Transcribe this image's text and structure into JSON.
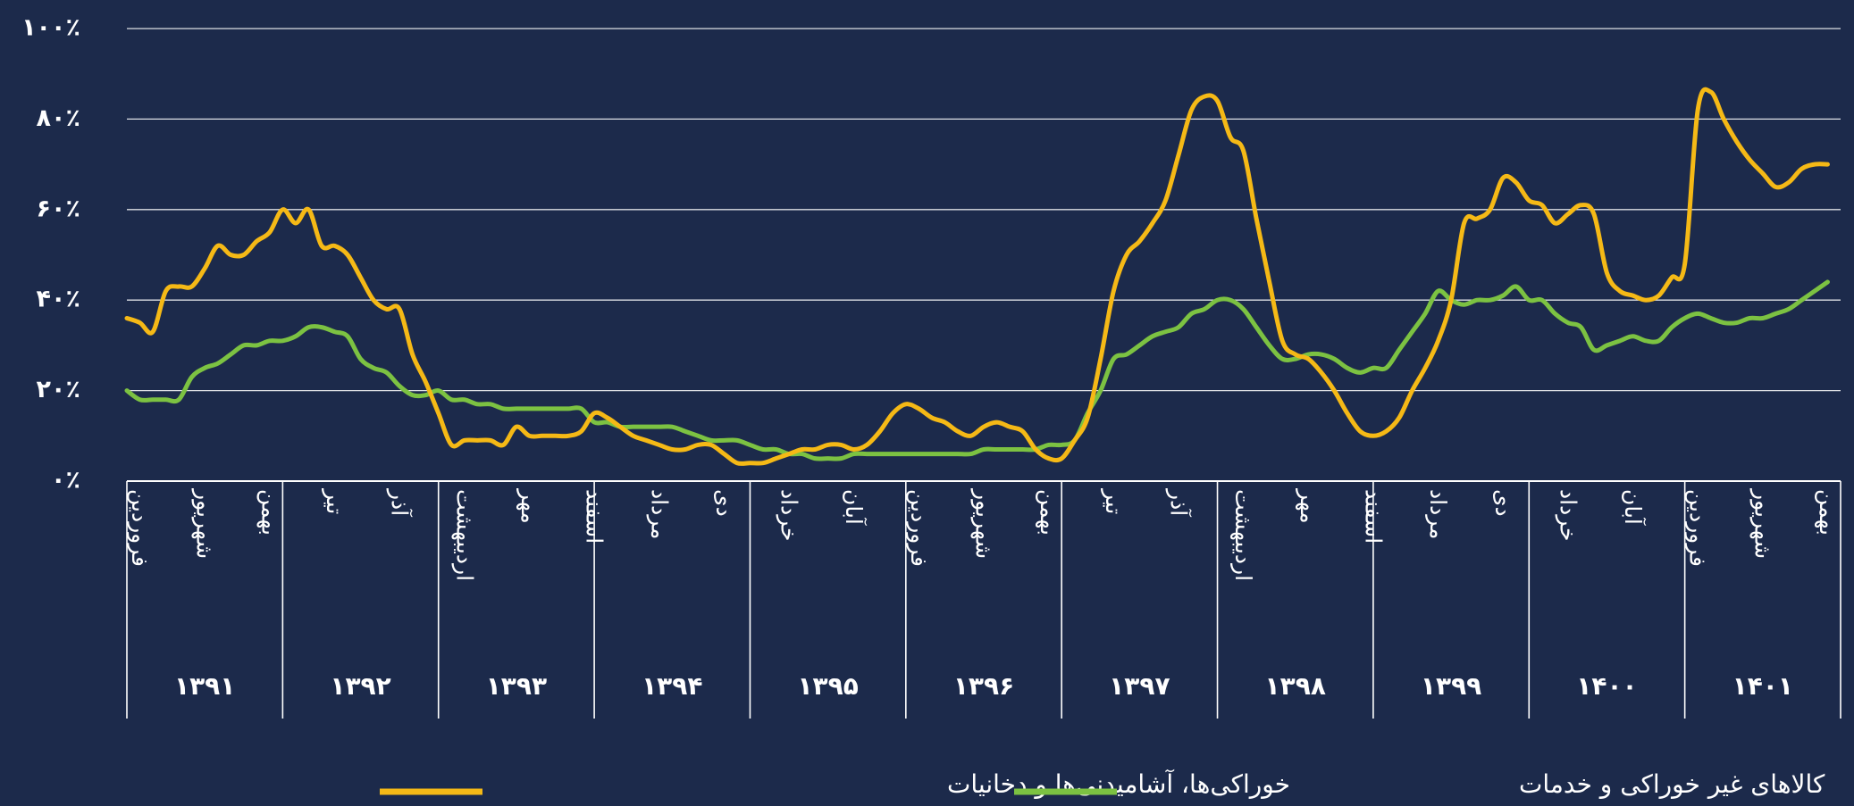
{
  "chart_data": {
    "type": "line",
    "categories": [
      "فروردین",
      null,
      null,
      null,
      null,
      "شهریور",
      null,
      null,
      null,
      null,
      "بهمن",
      null,
      null,
      null,
      null,
      "تیر",
      null,
      null,
      null,
      null,
      "آذر",
      null,
      null,
      null,
      null,
      "اردیبهشت",
      null,
      null,
      null,
      null,
      "مهر",
      null,
      null,
      null,
      null,
      "اسفند",
      null,
      null,
      null,
      null,
      "مرداد",
      null,
      null,
      null,
      null,
      "دی",
      null,
      null,
      null,
      null,
      "خرداد",
      null,
      null,
      null,
      null,
      "آبان",
      null,
      null,
      null,
      null,
      "فروردین",
      null,
      null,
      null,
      null,
      "شهریور",
      null,
      null,
      null,
      null,
      "بهمن",
      null,
      null,
      null,
      null,
      "تیر",
      null,
      null,
      null,
      null,
      "آذر",
      null,
      null,
      null,
      null,
      "اردیبهشت",
      null,
      null,
      null,
      null,
      "مهر",
      null,
      null,
      null,
      null,
      "اسفند",
      null,
      null,
      null,
      null,
      "مرداد",
      null,
      null,
      null,
      null,
      "دی",
      null,
      null,
      null,
      null,
      "خرداد",
      null,
      null,
      null,
      null,
      "آبان",
      null,
      null,
      null,
      null,
      "فروردین",
      null,
      null,
      null,
      null,
      "شهریور",
      null,
      null,
      null,
      null,
      "بهمن",
      null
    ],
    "years": [
      "۱۳۹۱",
      "۱۳۹۲",
      "۱۳۹۳",
      "۱۳۹۴",
      "۱۳۹۵",
      "۱۳۹۶",
      "۱۳۹۷",
      "۱۳۹۸",
      "۱۳۹۹",
      "۱۴۰۰",
      "۱۴۰۱"
    ],
    "series": [
      {
        "name": "خوراکی‌ها، آشامیدنی‌ها و دخانیات",
        "color": "#f5b916",
        "values": [
          36,
          35,
          33,
          42,
          43,
          43,
          47,
          52,
          50,
          50,
          53,
          55,
          60,
          57,
          60,
          52,
          52,
          50,
          45,
          40,
          38,
          38,
          28,
          22,
          15,
          8,
          9,
          9,
          9,
          8,
          12,
          10,
          10,
          10,
          10,
          11,
          15,
          14,
          12,
          10,
          9,
          8,
          7,
          7,
          8,
          8,
          6,
          4,
          4,
          4,
          5,
          6,
          7,
          7,
          8,
          8,
          7,
          8,
          11,
          15,
          17,
          16,
          14,
          13,
          11,
          10,
          12,
          13,
          12,
          11,
          7,
          5,
          5,
          9,
          14,
          27,
          42,
          50,
          53,
          57,
          62,
          72,
          82,
          85,
          84,
          76,
          73,
          58,
          44,
          31,
          28,
          27,
          24,
          20,
          15,
          11,
          10,
          11,
          14,
          20,
          25,
          31,
          40,
          57,
          58,
          60,
          67,
          66,
          62,
          61,
          57,
          59,
          61,
          59,
          46,
          42,
          41,
          40,
          41,
          45,
          48,
          82,
          86,
          80,
          75,
          71,
          68,
          65,
          66,
          69,
          70,
          70
        ]
      },
      {
        "name": "کالاهای غیر خوراکی و خدمات",
        "color": "#7cc242",
        "values": [
          20,
          18,
          18,
          18,
          18,
          23,
          25,
          26,
          28,
          30,
          30,
          31,
          31,
          32,
          34,
          34,
          33,
          32,
          27,
          25,
          24,
          21,
          19,
          19,
          20,
          18,
          18,
          17,
          17,
          16,
          16,
          16,
          16,
          16,
          16,
          16,
          13,
          13,
          12,
          12,
          12,
          12,
          12,
          11,
          10,
          9,
          9,
          9,
          8,
          7,
          7,
          6,
          6,
          5,
          5,
          5,
          6,
          6,
          6,
          6,
          6,
          6,
          6,
          6,
          6,
          6,
          7,
          7,
          7,
          7,
          7,
          8,
          8,
          9,
          15,
          20,
          27,
          28,
          30,
          32,
          33,
          34,
          37,
          38,
          40,
          40,
          38,
          34,
          30,
          27,
          27,
          28,
          28,
          27,
          25,
          24,
          25,
          25,
          29,
          33,
          37,
          42,
          40,
          39,
          40,
          40,
          41,
          43,
          40,
          40,
          37,
          35,
          34,
          29,
          30,
          31,
          32,
          31,
          31,
          34,
          36,
          37,
          36,
          35,
          35,
          36,
          36,
          37,
          38,
          40,
          42,
          44
        ]
      }
    ],
    "ylim": [
      0,
      100
    ],
    "yticks": [
      {
        "value": 0,
        "label": "۰٪"
      },
      {
        "value": 20,
        "label": "۲۰٪"
      },
      {
        "value": 40,
        "label": "۴۰٪"
      },
      {
        "value": 60,
        "label": "۶۰٪"
      },
      {
        "value": 80,
        "label": "۸۰٪"
      },
      {
        "value": 100,
        "label": "۱۰۰٪"
      }
    ],
    "grid": true
  }
}
